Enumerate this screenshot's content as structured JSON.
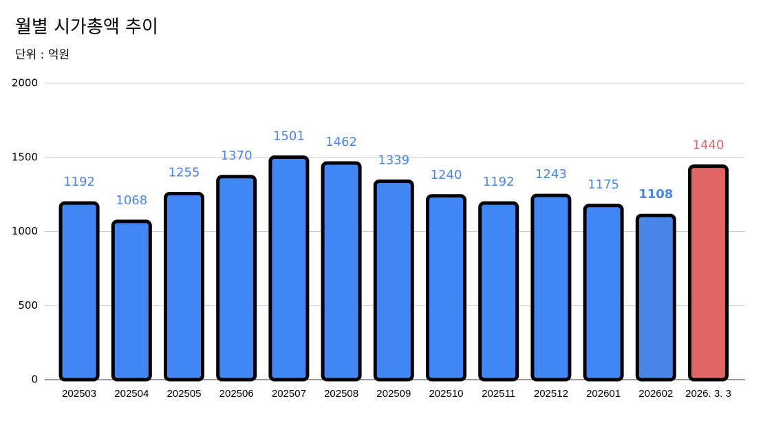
{
  "chart_data": {
    "type": "bar",
    "title": "월별 시가총액 추이",
    "subtitle": "단위 : 억원",
    "categories": [
      "202503",
      "202504",
      "202505",
      "202506",
      "202507",
      "202508",
      "202509",
      "202510",
      "202511",
      "202512",
      "202601",
      "202602",
      "2026. 3. 3"
    ],
    "values": [
      1192,
      1068,
      1255,
      1370,
      1501,
      1462,
      1339,
      1240,
      1192,
      1243,
      1175,
      1108,
      1440
    ],
    "colors": [
      "#4285f4",
      "#4285f4",
      "#4285f4",
      "#4285f4",
      "#4285f4",
      "#4285f4",
      "#4285f4",
      "#4285f4",
      "#4285f4",
      "#4285f4",
      "#4285f4",
      "#4a86e8",
      "#e06666"
    ],
    "value_label_colors": [
      "#4a86e8",
      "#4a86e8",
      "#4a86e8",
      "#4a86e8",
      "#4a86e8",
      "#4a86e8",
      "#4a86e8",
      "#4a86e8",
      "#4a86e8",
      "#4a86e8",
      "#4a86e8",
      "#4a86e8",
      "#e06666"
    ],
    "value_label_bold": [
      false,
      false,
      false,
      false,
      false,
      false,
      false,
      false,
      false,
      false,
      false,
      true,
      false
    ],
    "ylim": [
      0,
      2000
    ],
    "yticks": [
      0,
      500,
      1000,
      1500,
      2000
    ],
    "grid": true
  }
}
